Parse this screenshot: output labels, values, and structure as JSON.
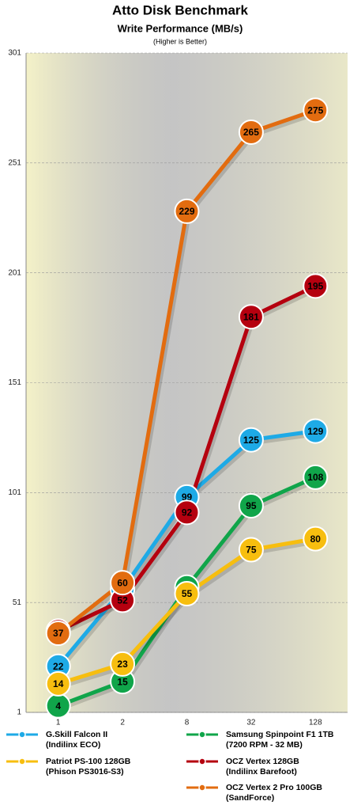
{
  "chart_data": {
    "type": "line",
    "title": "Atto Disk Benchmark",
    "subtitle": "Write Performance (MB/s)",
    "note": "(Higher is Better)",
    "categories": [
      "1",
      "2",
      "8",
      "32",
      "128"
    ],
    "series": [
      {
        "name": "G.Skill Falcon II",
        "detail": "(Indilinx ECO)",
        "color": "#1eaae6",
        "values": [
          22,
          57,
          99,
          125,
          129
        ]
      },
      {
        "name": "Samsung Spinpoint F1 1TB",
        "detail": "(7200 RPM - 32 MB)",
        "color": "#10a54a",
        "values": [
          4,
          15,
          58,
          95,
          108
        ]
      },
      {
        "name": "Patriot  PS-100 128GB",
        "detail": "(Phison PS3016-S3)",
        "color": "#f7be0f",
        "values": [
          14,
          23,
          55,
          75,
          80
        ]
      },
      {
        "name": "OCZ Vertex 128GB",
        "detail": "(Indilinx Barefoot)",
        "color": "#b5000f",
        "values": [
          38,
          52,
          92,
          181,
          195
        ]
      },
      {
        "name": "OCZ Vertex 2 Pro 100GB",
        "detail": "(SandForce)",
        "color": "#e26c10",
        "values": [
          37,
          60,
          229,
          265,
          275
        ]
      }
    ],
    "ylim": [
      1,
      301
    ],
    "yticks": [
      1,
      51,
      101,
      151,
      201,
      251,
      301
    ],
    "grid": true
  }
}
